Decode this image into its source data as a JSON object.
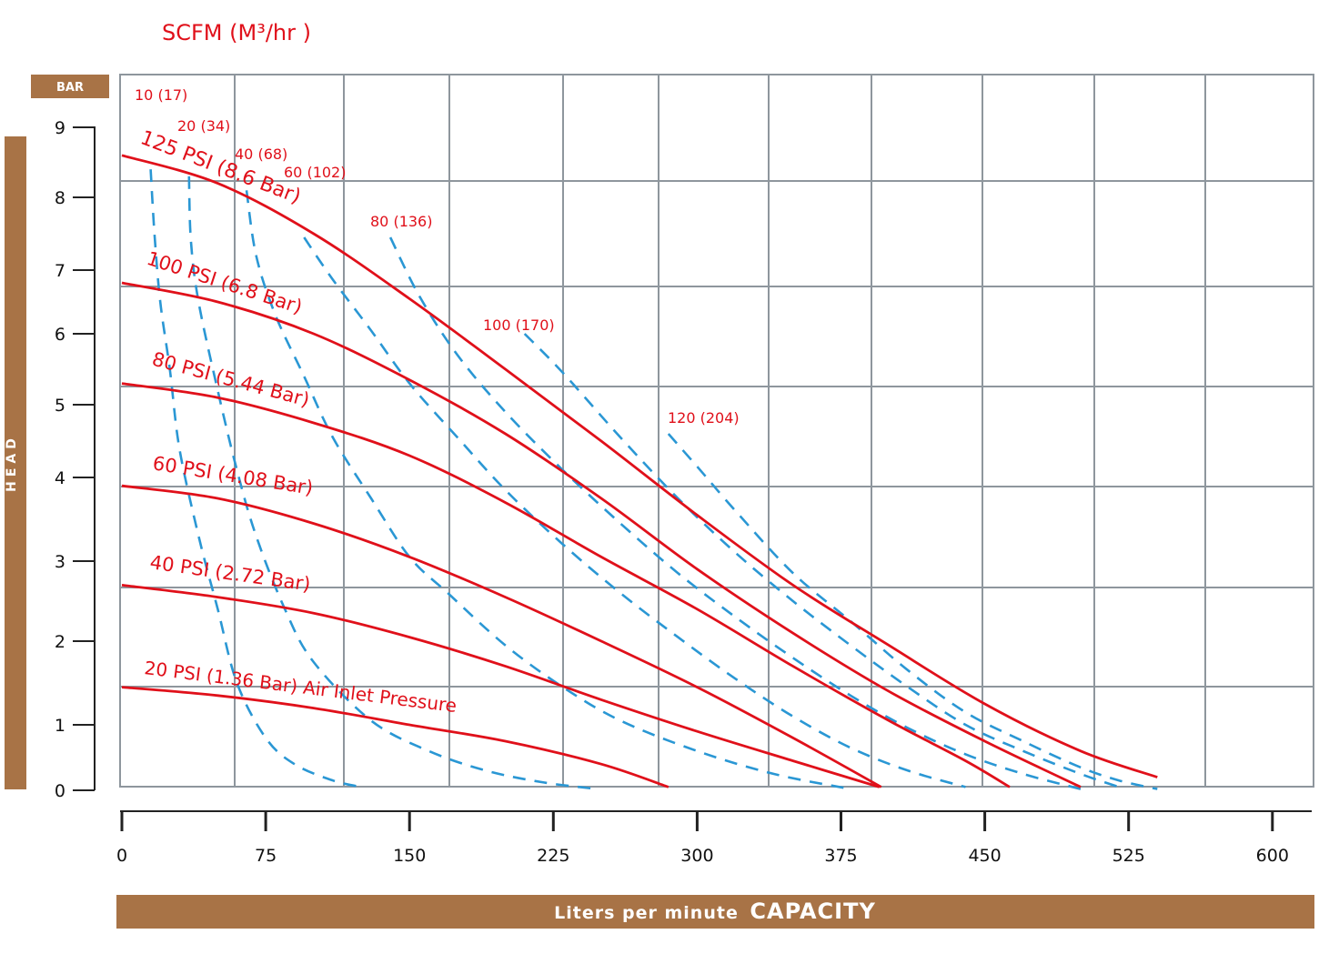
{
  "colors": {
    "accent_brown": "#a87346",
    "curve_red": "#e0101a",
    "air_blue": "#2a97d4",
    "grid": "#8e969d"
  },
  "chart_data": {
    "type": "line",
    "scfm_title": "SCFM (M³/hr )",
    "y_unit_label": "BAR",
    "y_axis_label": "HEAD",
    "x_axis_label_prefix": "Liters per minute",
    "x_axis_label_main": "CAPACITY",
    "x_ticks": [
      "0",
      "75",
      "150",
      "225",
      "300",
      "375",
      "450",
      "525",
      "600"
    ],
    "y_ticks": [
      "0",
      "1",
      "2",
      "3",
      "4",
      "5",
      "6",
      "7",
      "8",
      "9"
    ],
    "xlim": [
      0,
      600
    ],
    "grid": true,
    "pressure_series": [
      {
        "name": "125 PSI (8.6 Bar)",
        "x": [
          0,
          50,
          100,
          150,
          200,
          250,
          300,
          350,
          400,
          450,
          500,
          540
        ],
        "y": [
          8.6,
          8.2,
          7.5,
          6.55,
          5.5,
          4.5,
          3.55,
          2.7,
          1.95,
          1.25,
          0.6,
          0.2
        ]
      },
      {
        "name": "100 PSI (6.8 Bar)",
        "x": [
          0,
          50,
          100,
          150,
          200,
          250,
          300,
          350,
          400,
          450,
          500
        ],
        "y": [
          6.8,
          6.5,
          6.0,
          5.35,
          4.6,
          3.75,
          2.9,
          2.1,
          1.4,
          0.75,
          0.05
        ]
      },
      {
        "name": "80 PSI (5.44 Bar)",
        "x": [
          0,
          50,
          100,
          150,
          200,
          250,
          300,
          350,
          400,
          440,
          463
        ],
        "y": [
          5.3,
          5.1,
          4.75,
          4.3,
          3.7,
          3.05,
          2.4,
          1.7,
          1.05,
          0.45,
          0.05
        ]
      },
      {
        "name": "60 PSI (4.08 Bar)",
        "x": [
          0,
          50,
          100,
          150,
          200,
          250,
          300,
          350,
          396
        ],
        "y": [
          3.9,
          3.75,
          3.45,
          3.05,
          2.55,
          2.0,
          1.45,
          0.8,
          0.05
        ]
      },
      {
        "name": "40 PSI (2.72 Bar)",
        "x": [
          0,
          50,
          100,
          150,
          200,
          250,
          300,
          350,
          395
        ],
        "y": [
          2.7,
          2.55,
          2.35,
          2.05,
          1.7,
          1.3,
          0.9,
          0.45,
          0.05
        ]
      },
      {
        "name": "20 PSI (1.36 Bar) Air Inlet Pressure",
        "x": [
          0,
          50,
          100,
          150,
          200,
          250,
          285
        ],
        "y": [
          1.45,
          1.35,
          1.2,
          1.0,
          0.75,
          0.4,
          0.05
        ]
      }
    ],
    "air_series": [
      {
        "name": "10 (17)",
        "x": [
          15,
          17,
          20,
          25,
          30,
          40,
          50,
          60,
          75,
          90,
          110,
          125
        ],
        "y": [
          8.4,
          7.5,
          6.5,
          5.5,
          4.4,
          3.3,
          2.4,
          1.5,
          0.8,
          0.4,
          0.15,
          0.05
        ]
      },
      {
        "name": "20 (34)",
        "x": [
          35,
          36,
          40,
          50,
          60,
          70,
          85,
          100,
          130,
          160,
          190,
          220,
          248
        ],
        "y": [
          8.3,
          7.4,
          6.5,
          5.2,
          4.1,
          3.3,
          2.4,
          1.75,
          1.05,
          0.6,
          0.3,
          0.12,
          0.02
        ]
      },
      {
        "name": "40 (68)",
        "x": [
          65,
          70,
          80,
          95,
          110,
          130,
          150,
          170,
          200,
          230,
          260,
          300,
          340,
          380
        ],
        "y": [
          8.1,
          7.2,
          6.3,
          5.4,
          4.55,
          3.75,
          3.05,
          2.6,
          1.95,
          1.45,
          1.05,
          0.6,
          0.25,
          0.02
        ]
      },
      {
        "name": "60 (102)",
        "x": [
          95,
          110,
          130,
          150,
          175,
          200,
          230,
          260,
          290,
          320,
          350,
          380,
          410,
          440
        ],
        "y": [
          7.45,
          6.85,
          6.05,
          5.3,
          4.55,
          3.85,
          3.2,
          2.6,
          2.05,
          1.55,
          1.1,
          0.65,
          0.3,
          0.05
        ]
      },
      {
        "name": "80 (136)",
        "x": [
          140,
          155,
          175,
          200,
          230,
          260,
          290,
          320,
          350,
          380,
          410,
          440,
          470,
          500
        ],
        "y": [
          7.45,
          6.6,
          5.7,
          4.9,
          4.1,
          3.45,
          2.85,
          2.3,
          1.8,
          1.35,
          0.95,
          0.55,
          0.25,
          0.02
        ]
      },
      {
        "name": "100 (170)",
        "x": [
          210,
          230,
          260,
          290,
          320,
          350,
          380,
          410,
          440,
          470,
          500,
          520
        ],
        "y": [
          6.0,
          5.45,
          4.55,
          3.75,
          3.1,
          2.5,
          1.95,
          1.45,
          1.0,
          0.6,
          0.25,
          0.05
        ]
      },
      {
        "name": "120 (204)",
        "x": [
          285,
          300,
          320,
          350,
          380,
          410,
          440,
          470,
          500,
          520,
          540
        ],
        "y": [
          4.6,
          4.15,
          3.6,
          2.85,
          2.25,
          1.65,
          1.15,
          0.75,
          0.35,
          0.15,
          0.02
        ]
      }
    ]
  }
}
